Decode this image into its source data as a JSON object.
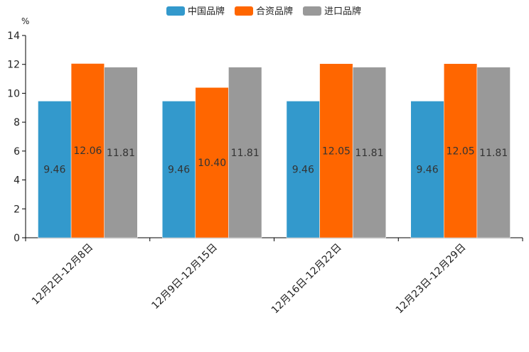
{
  "chart_data": {
    "type": "bar",
    "title": "",
    "xlabel": "",
    "ylabel": "%",
    "ylim": [
      0,
      14
    ],
    "yticks": [
      0,
      2,
      4,
      6,
      8,
      10,
      12,
      14
    ],
    "grid": false,
    "legend_position": "top-center",
    "categories": [
      "12月2日-12月8日",
      "12月9日-12月15日",
      "12月16日-12月22日",
      "12月23日-12月29日"
    ],
    "series": [
      {
        "name": "中国品牌",
        "color": "#3399cc",
        "values": [
          9.46,
          9.46,
          9.46,
          9.46
        ],
        "labels": [
          "9.46",
          "9.46",
          "9.46",
          "9.46"
        ]
      },
      {
        "name": "合资品牌",
        "color": "#ff6600",
        "values": [
          12.06,
          10.4,
          12.05,
          12.05
        ],
        "labels": [
          "12.06",
          "10.40",
          "12.05",
          "12.05"
        ]
      },
      {
        "name": "进口品牌",
        "color": "#999999",
        "values": [
          11.81,
          11.81,
          11.81,
          11.81
        ],
        "labels": [
          "11.81",
          "11.81",
          "11.81",
          "11.81"
        ]
      }
    ]
  }
}
